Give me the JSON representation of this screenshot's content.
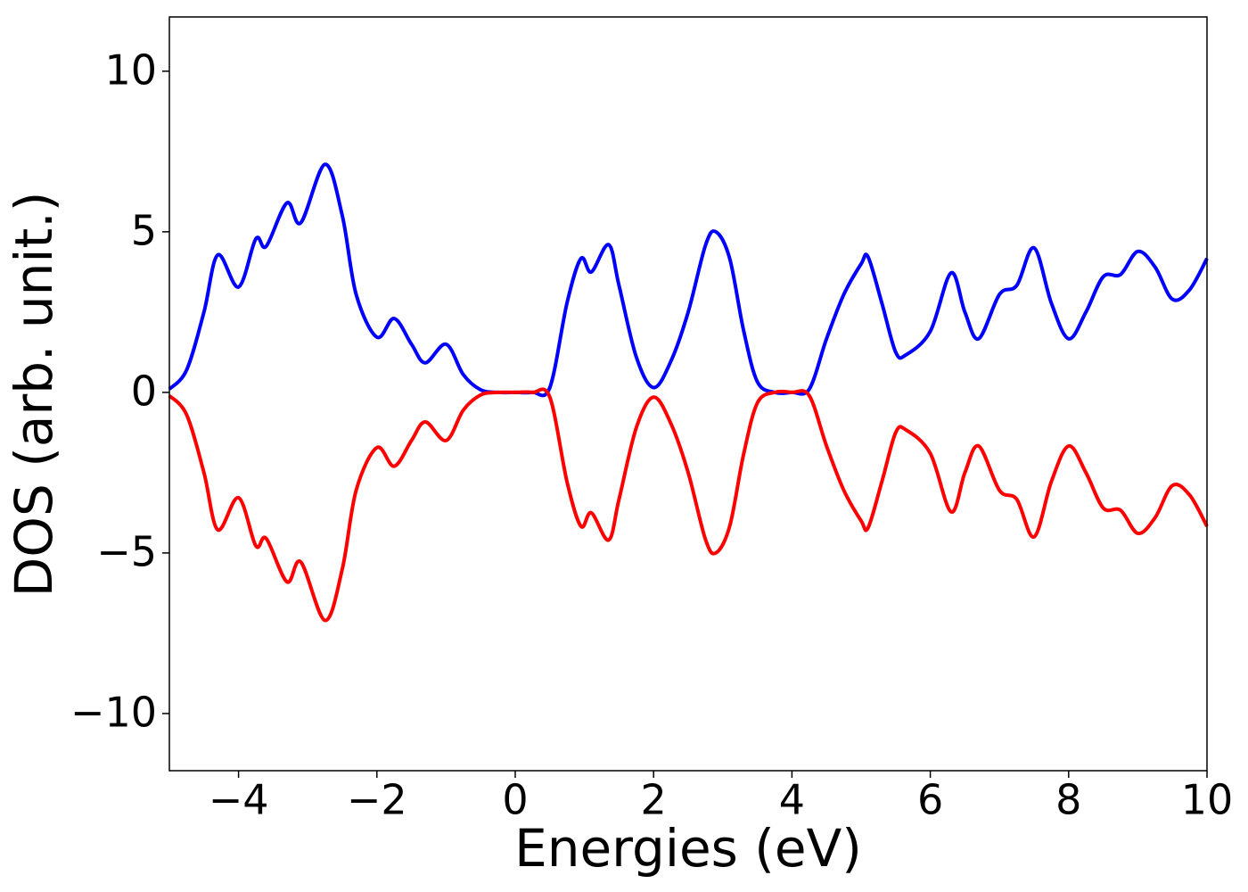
{
  "chart_data": {
    "type": "line",
    "xlabel": "Energies (eV)",
    "ylabel": "DOS (arb. unit.)",
    "x": [
      -5,
      -4.75,
      -4.5,
      -4.3,
      -4.0,
      -3.75,
      -3.6,
      -3.3,
      -3.1,
      -2.75,
      -2.5,
      -2.3,
      -2.0,
      -1.75,
      -1.5,
      -1.3,
      -1.0,
      -0.75,
      -0.5,
      -0.25,
      0,
      0.25,
      0.5,
      0.75,
      0.95,
      1.1,
      1.35,
      1.5,
      1.75,
      2.0,
      2.25,
      2.5,
      2.75,
      2.9,
      3.1,
      3.3,
      3.5,
      3.75,
      4.0,
      4.25,
      4.5,
      4.75,
      5.0,
      5.1,
      5.3,
      5.5,
      5.65,
      6.0,
      6.3,
      6.5,
      6.7,
      7.0,
      7.25,
      7.5,
      7.75,
      8.0,
      8.25,
      8.5,
      8.75,
      9.0,
      9.25,
      9.5,
      9.75,
      10
    ],
    "series": [
      {
        "color": "#0000ff",
        "values": [
          0.1,
          0.7,
          2.5,
          4.28,
          3.28,
          4.78,
          4.55,
          5.9,
          5.28,
          7.1,
          5.5,
          3.05,
          1.72,
          2.3,
          1.5,
          0.92,
          1.5,
          0.55,
          0.08,
          0,
          0,
          0,
          0.15,
          2.8,
          4.17,
          3.75,
          4.6,
          3.33,
          1.1,
          0.15,
          0.97,
          2.5,
          4.58,
          5.0,
          4.17,
          1.94,
          0.33,
          0,
          0,
          0.1,
          1.67,
          3.05,
          4.0,
          4.22,
          2.78,
          1.25,
          1.17,
          1.9,
          3.72,
          2.5,
          1.67,
          3.05,
          3.33,
          4.5,
          2.78,
          1.67,
          2.5,
          3.6,
          3.67,
          4.39,
          3.9,
          2.9,
          3.2,
          4.17
        ]
      },
      {
        "color": "#ff0000",
        "values": [
          -0.1,
          -0.7,
          -2.5,
          -4.28,
          -3.28,
          -4.78,
          -4.55,
          -5.9,
          -5.28,
          -7.1,
          -5.5,
          -3.05,
          -1.72,
          -2.3,
          -1.5,
          -0.92,
          -1.5,
          -0.55,
          -0.08,
          0,
          0,
          0,
          -0.15,
          -2.8,
          -4.17,
          -3.75,
          -4.6,
          -3.33,
          -1.1,
          -0.15,
          -0.97,
          -2.5,
          -4.58,
          -5.0,
          -4.17,
          -1.94,
          -0.33,
          0,
          0,
          -0.1,
          -1.67,
          -3.05,
          -4.0,
          -4.22,
          -2.78,
          -1.25,
          -1.17,
          -1.9,
          -3.72,
          -2.5,
          -1.67,
          -3.05,
          -3.33,
          -4.5,
          -2.78,
          -1.67,
          -2.5,
          -3.6,
          -3.67,
          -4.39,
          -3.9,
          -2.9,
          -3.2,
          -4.17
        ]
      }
    ],
    "xlim": [
      -5,
      10
    ],
    "xticks": [
      {
        "value": -4,
        "label": "−4"
      },
      {
        "value": -2,
        "label": "−2"
      },
      0,
      2,
      4,
      6,
      8,
      10
    ],
    "ylim": [
      -11.78,
      11.69
    ],
    "yticks": [
      {
        "value": -10,
        "label": "−10"
      },
      {
        "value": -5,
        "label": "−5"
      },
      0,
      5,
      10
    ],
    "grid": false
  }
}
